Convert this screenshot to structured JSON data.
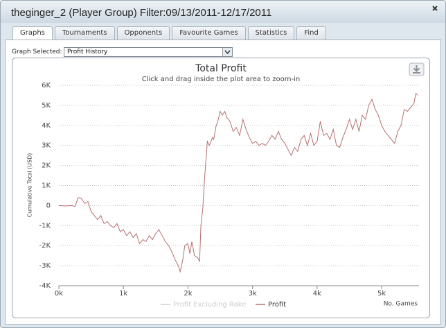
{
  "window": {
    "title": "theginger_2 (Player Group) Filter:09/13/2011-12/17/2011"
  },
  "tabs": [
    "Graphs",
    "Tournaments",
    "Opponents",
    "Favourite Games",
    "Statistics",
    "Find"
  ],
  "active_tab": 0,
  "graph_selector": {
    "label": "Graph Selected:",
    "value": "Profit History"
  },
  "chart_data": {
    "type": "line",
    "title": "Total Profit",
    "subtitle": "Click and drag inside the plot area to zoom-in",
    "y_label": "Cumulative Total (USD)",
    "x_label": "No. Games",
    "xlim": [
      0,
      5600
    ],
    "xticks": [
      {
        "value": 0,
        "label": "0k"
      },
      {
        "value": 1000,
        "label": "1k"
      },
      {
        "value": 2000,
        "label": "2k"
      },
      {
        "value": 3000,
        "label": "3k"
      },
      {
        "value": 4000,
        "label": "4k"
      },
      {
        "value": 5000,
        "label": "5k"
      }
    ],
    "ylim": [
      -4000,
      6000
    ],
    "yticks": [
      {
        "value": -4000,
        "label": "-4K"
      },
      {
        "value": -3000,
        "label": "-3K"
      },
      {
        "value": -2000,
        "label": "-2K"
      },
      {
        "value": -1000,
        "label": "-1K"
      },
      0,
      {
        "value": 1000,
        "label": "1K"
      },
      {
        "value": 2000,
        "label": "2K"
      },
      {
        "value": 3000,
        "label": "3K"
      },
      {
        "value": 4000,
        "label": "4K"
      },
      {
        "value": 5000,
        "label": "5K"
      },
      {
        "value": 6000,
        "label": "6K"
      }
    ],
    "grid": true,
    "x": [
      0,
      100,
      200,
      250,
      300,
      350,
      400,
      450,
      500,
      550,
      600,
      650,
      700,
      750,
      800,
      850,
      900,
      950,
      1000,
      1050,
      1100,
      1150,
      1200,
      1250,
      1300,
      1350,
      1400,
      1450,
      1500,
      1550,
      1600,
      1650,
      1700,
      1750,
      1800,
      1850,
      1880,
      1920,
      1950,
      2000,
      2030,
      2060,
      2100,
      2150,
      2180,
      2200,
      2230,
      2260,
      2300,
      2330,
      2380,
      2400,
      2430,
      2470,
      2500,
      2530,
      2570,
      2600,
      2650,
      2700,
      2750,
      2800,
      2850,
      2900,
      2950,
      3000,
      3050,
      3100,
      3150,
      3200,
      3250,
      3300,
      3350,
      3400,
      3450,
      3500,
      3550,
      3600,
      3650,
      3700,
      3750,
      3800,
      3850,
      3900,
      3950,
      4000,
      4050,
      4100,
      4150,
      4200,
      4250,
      4300,
      4350,
      4400,
      4450,
      4500,
      4550,
      4600,
      4650,
      4700,
      4750,
      4800,
      4850,
      4900,
      4950,
      5000,
      5050,
      5100,
      5150,
      5200,
      5250,
      5300,
      5350,
      5400,
      5450,
      5500,
      5530,
      5560
    ],
    "series": [
      {
        "name": "Profit Excluding Rake",
        "color": "#cccccc",
        "visible": false
      },
      {
        "name": "Profit",
        "color": "#b5706f",
        "visible": true,
        "values": [
          0,
          -20,
          0,
          -50,
          400,
          350,
          100,
          200,
          -300,
          -500,
          -700,
          -500,
          -900,
          -800,
          -1000,
          -1100,
          -900,
          -1300,
          -1200,
          -1500,
          -1300,
          -1600,
          -1400,
          -1900,
          -1700,
          -1800,
          -1500,
          -1700,
          -1400,
          -1200,
          -1500,
          -1800,
          -2000,
          -2300,
          -2700,
          -3000,
          -3300,
          -2700,
          -2000,
          -1900,
          -2400,
          -1800,
          -2500,
          -2600,
          -2800,
          -1000,
          -100,
          1500,
          3200,
          3000,
          3400,
          3300,
          3900,
          4300,
          4700,
          4500,
          4700,
          4400,
          4200,
          3700,
          3900,
          3500,
          4300,
          3800,
          3400,
          3100,
          3200,
          3000,
          3100,
          3000,
          3200,
          3500,
          3300,
          3700,
          3300,
          3100,
          2800,
          2500,
          2900,
          2700,
          3300,
          3500,
          3000,
          3600,
          3000,
          3200,
          4200,
          3500,
          3600,
          3300,
          3800,
          3000,
          2900,
          3400,
          3800,
          4300,
          3800,
          4300,
          3700,
          4500,
          4300,
          5000,
          5300,
          4800,
          4500,
          4000,
          3700,
          3500,
          3300,
          3100,
          3700,
          4000,
          4800,
          4700,
          4900,
          5100,
          5600,
          5500
        ]
      }
    ]
  }
}
